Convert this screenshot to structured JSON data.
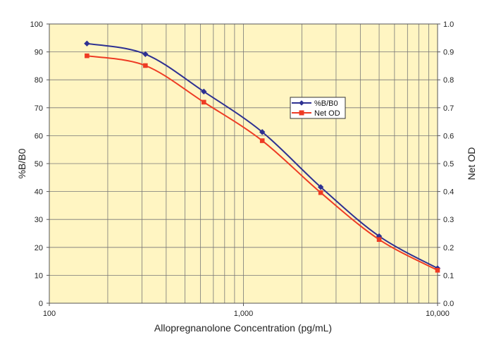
{
  "chart_data": {
    "type": "line",
    "xlabel": "Allopregnanolone Concentration (pg/mL)",
    "ylabel_left": "%B/B0",
    "ylabel_right": "Net OD",
    "x_scale": "log",
    "xlim": [
      100,
      10000
    ],
    "x_ticks": [
      {
        "value": 100,
        "label": "100"
      },
      {
        "value": 1000,
        "label": "1,000"
      },
      {
        "value": 10000,
        "label": "10,000"
      }
    ],
    "ylim_left": [
      0,
      100
    ],
    "y_ticks_left": [
      "0",
      "10",
      "20",
      "30",
      "40",
      "50",
      "60",
      "70",
      "80",
      "90",
      "100"
    ],
    "ylim_right": [
      0,
      1.0
    ],
    "y_ticks_right": [
      "0.0",
      "0.1",
      "0.2",
      "0.3",
      "0.4",
      "0.5",
      "0.6",
      "0.7",
      "0.8",
      "0.9",
      "1.0"
    ],
    "grid": true,
    "background_color": "#FFF5C2",
    "legend_position": "center-right",
    "series": [
      {
        "name": "%B/B0",
        "axis": "left",
        "color": "#2E3192",
        "marker": "diamond",
        "x": [
          156.25,
          312.5,
          625,
          1250,
          2500,
          5000,
          10000
        ],
        "y": [
          93.0,
          89.2,
          75.8,
          61.3,
          41.6,
          24.0,
          12.5
        ]
      },
      {
        "name": "Net OD",
        "axis": "right",
        "color": "#EE3B24",
        "marker": "square",
        "x": [
          156.25,
          312.5,
          625,
          1250,
          2500,
          5000,
          10000
        ],
        "y": [
          0.886,
          0.851,
          0.72,
          0.582,
          0.396,
          0.228,
          0.118
        ]
      }
    ]
  }
}
